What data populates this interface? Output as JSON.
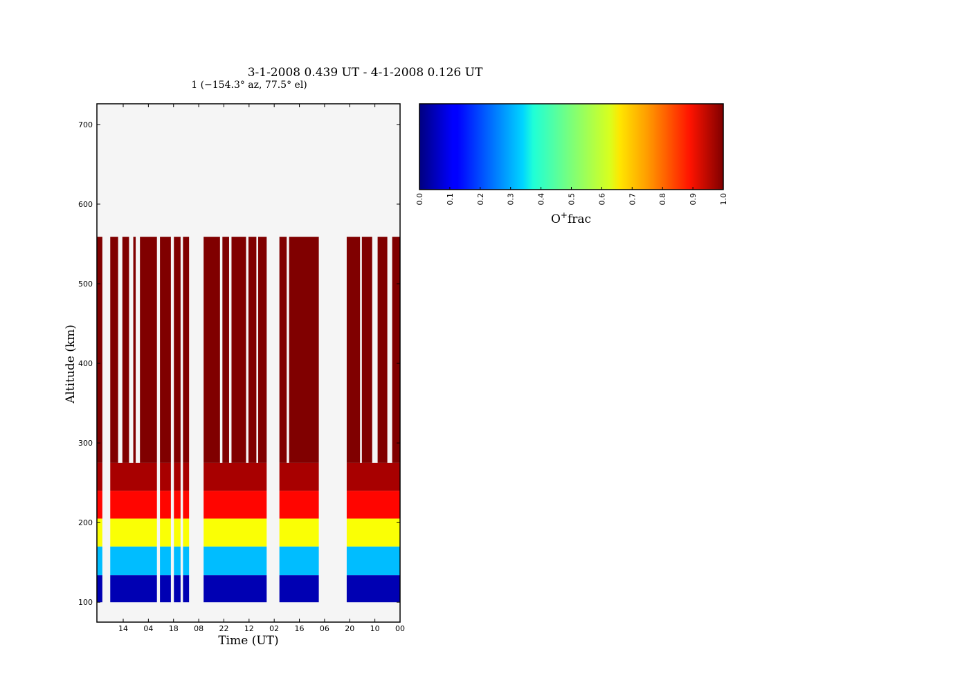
{
  "title": "3-1-2008 0.439 UT - 4-1-2008 0.126 UT",
  "subtitle": "1 (−154.3° az, 77.5° el)",
  "chart_data": {
    "type": "heatmap",
    "xlabel": "Time (UT)",
    "ylabel": "Altitude (km)",
    "ylim": [
      75,
      726
    ],
    "x_tick_labels": [
      "14",
      "04",
      "18",
      "08",
      "22",
      "12",
      "02",
      "16",
      "06",
      "20",
      "10",
      "00"
    ],
    "y_ticks": [
      100,
      200,
      300,
      400,
      500,
      600,
      700
    ],
    "colormap": "jet",
    "background_color": "#f5f5f5",
    "color_range": [
      0.0,
      1.0
    ],
    "colorbar_ticks": [
      "0.0",
      "0.1",
      "0.2",
      "0.3",
      "0.4",
      "0.5",
      "0.6",
      "0.7",
      "0.8",
      "0.9",
      "1.0"
    ],
    "colorbar_label": "O⁺frac",
    "altitude_bands": [
      {
        "from": 100,
        "to": 134,
        "value": 0.05
      },
      {
        "from": 134,
        "to": 170,
        "value": 0.31
      },
      {
        "from": 170,
        "to": 205,
        "value": 0.62
      },
      {
        "from": 205,
        "to": 240,
        "value": 0.87
      },
      {
        "from": 240,
        "to": 275,
        "value": 0.96
      },
      {
        "from": 275,
        "to": 559,
        "value": 1.0
      }
    ],
    "data_segments_full_profile": [
      [
        0,
        0.45
      ],
      [
        1.1,
        1.75
      ],
      [
        2.1,
        2.65
      ],
      [
        3.0,
        3.2
      ],
      [
        3.55,
        4.95
      ],
      [
        5.2,
        6.1
      ],
      [
        6.35,
        6.9
      ],
      [
        7.1,
        7.6
      ],
      [
        8.8,
        10.15
      ],
      [
        10.35,
        10.9
      ],
      [
        11.1,
        12.3
      ],
      [
        12.5,
        13.15
      ],
      [
        13.3,
        14.0
      ],
      [
        15.05,
        15.65
      ],
      [
        15.85,
        18.3
      ],
      [
        20.6,
        21.7
      ],
      [
        21.85,
        22.7
      ],
      [
        23.15,
        23.95
      ],
      [
        24.35,
        25.0
      ]
    ],
    "data_segments_bottom_only": [
      [
        0,
        0.45
      ],
      [
        1.1,
        4.95
      ],
      [
        5.2,
        6.1
      ],
      [
        6.35,
        6.9
      ],
      [
        7.1,
        7.6
      ],
      [
        8.8,
        14.0
      ],
      [
        15.05,
        18.3
      ],
      [
        20.6,
        25.0
      ]
    ],
    "x_range_hours": [
      0,
      25
    ]
  }
}
